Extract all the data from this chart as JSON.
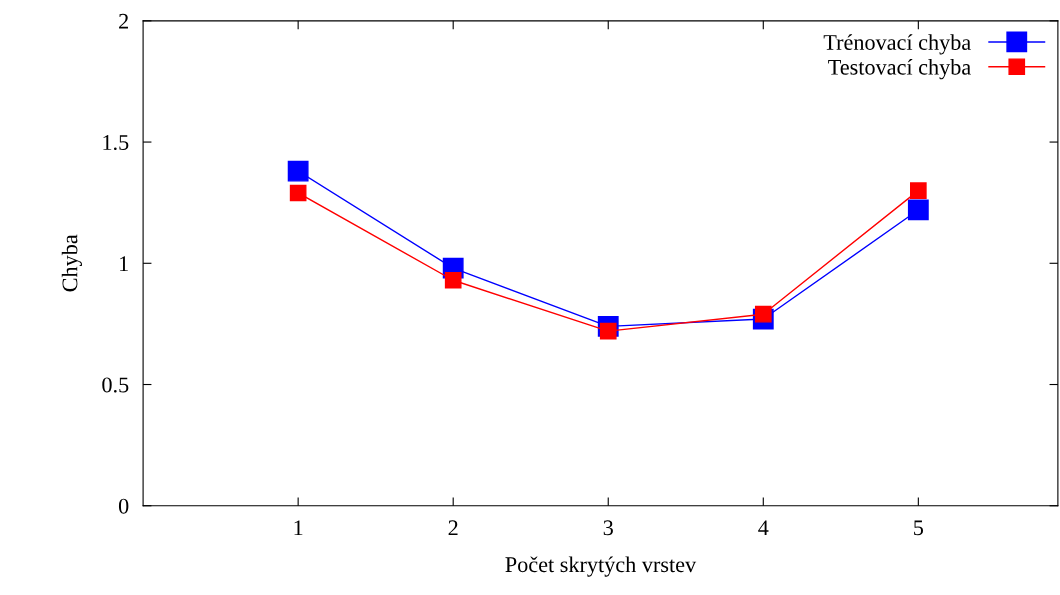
{
  "chart_data": {
    "type": "line",
    "xlabel": "Počet skrytých vrstev",
    "ylabel": "Chyba",
    "x": [
      1,
      2,
      3,
      4,
      5
    ],
    "series": [
      {
        "name": "Trénovací chyba",
        "color": "#0000ff",
        "values": [
          1.38,
          0.98,
          0.74,
          0.77,
          1.22
        ]
      },
      {
        "name": "Testovací chyba",
        "color": "#ff0000",
        "values": [
          1.29,
          0.93,
          0.72,
          0.79,
          1.3
        ]
      }
    ],
    "xlim": [
      0,
      5.9
    ],
    "xticks": [
      1,
      2,
      3,
      4,
      5
    ],
    "ylim": [
      0,
      2
    ],
    "yticks": [
      0,
      0.5,
      1,
      1.5,
      2
    ],
    "grid": false,
    "legend": "top right",
    "marker": "square",
    "line_style": "solid"
  }
}
